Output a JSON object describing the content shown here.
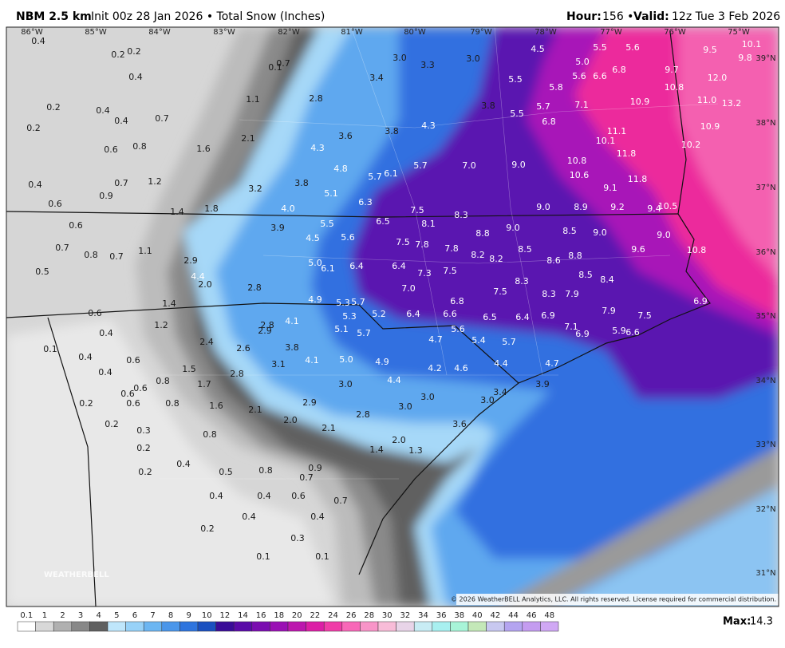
{
  "header": {
    "model": "NBM 2.5 km",
    "init": "Init 00z 28 Jan 2026 • Total Snow (Inches)",
    "hour_label": "Hour:",
    "hour": "156 •",
    "valid_label": "Valid:",
    "valid": "12z Tue 3 Feb 2026"
  },
  "map": {
    "longitudes": [
      "86°W",
      "85°W",
      "84°W",
      "83°W",
      "82°W",
      "81°W",
      "80°W",
      "79°W",
      "78°W",
      "77°W",
      "76°W",
      "75°W"
    ],
    "latitudes": [
      "39°N",
      "38°N",
      "37°N",
      "36°N",
      "35°N",
      "34°N",
      "33°N",
      "32°N",
      "31°N"
    ],
    "labels": [
      "0.4",
      "0.2",
      "0.2",
      "0.1",
      "0.7",
      "3.0",
      "3.3",
      "3.0",
      "4.5",
      "5.5",
      "5.6",
      "10.1",
      "9.5",
      "9.8",
      "5.0",
      "6.8",
      "9.7",
      "12.0",
      "0.4",
      "3.4",
      "5.5",
      "5.6",
      "6.6",
      "10.8",
      "5.8",
      "1.1",
      "2.8",
      "0.2",
      "0.4",
      "3.8",
      "5.7",
      "7.1",
      "10.9",
      "11.0",
      "13.2",
      "0.4",
      "0.7",
      "5.5",
      "6.8",
      "4.3",
      "0.2",
      "3.8",
      "3.6",
      "11.1",
      "10.9",
      "0.6",
      "0.8",
      "1.6",
      "2.1",
      "4.3",
      "10.1",
      "10.2",
      "11.8",
      "7.0",
      "9.0",
      "10.8",
      "4.8",
      "5.7",
      "6.1",
      "5.7",
      "3.8",
      "10.6",
      "11.8",
      "1.2",
      "0.7",
      "0.4",
      "3.2",
      "5.1",
      "9.1",
      "0.9",
      "6.3",
      "0.6",
      "4.0",
      "1.4",
      "1.8",
      "7.5",
      "8.3",
      "9.0",
      "8.9",
      "9.2",
      "9.4",
      "10.5",
      "0.6",
      "3.9",
      "5.5",
      "6.5",
      "8.1",
      "9.0",
      "8.5",
      "9.0",
      "9.0",
      "4.5",
      "5.6",
      "8.8",
      "1.1",
      "0.7",
      "0.8",
      "0.7",
      "7.5",
      "7.8",
      "7.8",
      "8.2",
      "8.2",
      "8.5",
      "9.6",
      "10.8",
      "2.9",
      "5.0",
      "6.1",
      "6.4",
      "6.4",
      "8.6",
      "8.8",
      "0.5",
      "4.4",
      "7.3",
      "7.5",
      "8.5",
      "8.4",
      "2.0",
      "2.8",
      "8.3",
      "7.0",
      "7.5",
      "8.3",
      "7.9",
      "1.4",
      "4.9",
      "5.3",
      "5.7",
      "6.8",
      "6.9",
      "0.6",
      "5.2",
      "6.4",
      "6.6",
      "6.5",
      "6.4",
      "6.9",
      "7.9",
      "7.5",
      "5.3",
      "1.2",
      "2.8",
      "4.1",
      "7.1",
      "5.9",
      "6.6",
      "0.4",
      "5.1",
      "5.7",
      "5.6",
      "6.9",
      "2.9",
      "4.7",
      "5.4",
      "5.7",
      "2.4",
      "2.6",
      "3.8",
      "0.1",
      "0.4",
      "0.6",
      "4.1",
      "5.0",
      "4.9",
      "4.4",
      "4.7",
      "3.1",
      "1.5",
      "4.2",
      "4.6",
      "0.4",
      "0.6",
      "0.8",
      "2.8",
      "4.4",
      "1.7",
      "3.0",
      "3.4",
      "3.9",
      "0.6",
      "3.0",
      "3.0",
      "0.2",
      "0.6",
      "0.8",
      "1.6",
      "2.9",
      "2.1",
      "3.0",
      "2.8",
      "2.0",
      "0.2",
      "0.3",
      "2.1",
      "3.6",
      "0.8",
      "2.0",
      "0.2",
      "1.4",
      "1.3",
      "0.4",
      "0.5",
      "0.8",
      "0.9",
      "0.2",
      "0.7",
      "0.4",
      "0.4",
      "0.6",
      "0.4",
      "0.7",
      "0.4",
      "0.2",
      "0.3",
      "0.1",
      "0.1"
    ],
    "watermark": "WEATHERBELL",
    "copyright": "© 2026 WeatherBELL Analytics, LLC. All rights reserved. License required for commercial distribution."
  },
  "legend": {
    "labels": [
      "0.1",
      "1",
      "2",
      "3",
      "4",
      "5",
      "6",
      "7",
      "8",
      "9",
      "10",
      "12",
      "14",
      "16",
      "18",
      "20",
      "22",
      "24",
      "26",
      "28",
      "30",
      "32",
      "34",
      "36",
      "38",
      "40",
      "42",
      "44",
      "46",
      "48"
    ],
    "colors": [
      "#ffffff",
      "#d8d8d8",
      "#b0b0b0",
      "#888888",
      "#606060",
      "#bfe6fb",
      "#98d2f8",
      "#6cb6f2",
      "#4a96ea",
      "#2e74de",
      "#1a50c0",
      "#3a0c98",
      "#5a0aa8",
      "#7a0cb0",
      "#9a10b4",
      "#bc16ae",
      "#dc1ea6",
      "#f03ca8",
      "#f868b8",
      "#f894c8",
      "#f8bcd8",
      "#e8d4e8",
      "#c8ecf4",
      "#a8f0f0",
      "#a8f4d8",
      "#c4e8b8",
      "#c8c8f0",
      "#b4a4f0",
      "#c49cf0",
      "#d0a8f4"
    ],
    "max_label": "Max:",
    "max": "14.3"
  }
}
